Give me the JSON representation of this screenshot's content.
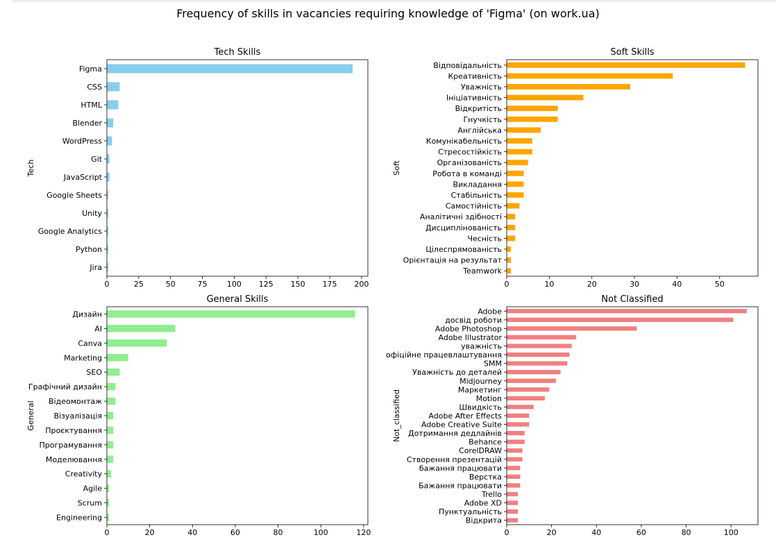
{
  "figure": {
    "title": "Frequency of skills in vacancies requiring knowledge of 'Figma' (on work.ua)"
  },
  "chart_data": [
    {
      "type": "bar",
      "orientation": "horizontal",
      "title": "Tech Skills",
      "xlabel": "",
      "ylabel": "Tech",
      "color": "#87ceeb",
      "xlim": [
        0,
        205
      ],
      "xticks": [
        0,
        25,
        50,
        75,
        100,
        125,
        150,
        175,
        200
      ],
      "categories": [
        "Figma",
        "CSS",
        "HTML",
        "Blender",
        "WordPress",
        "Git",
        "JavaScript",
        "Google Sheets",
        "Unity",
        "Google Analytics",
        "Python",
        "Jira"
      ],
      "values": [
        193,
        10,
        9,
        5,
        4,
        2,
        2,
        1,
        1,
        1,
        1,
        1
      ]
    },
    {
      "type": "bar",
      "orientation": "horizontal",
      "title": "Soft Skills",
      "xlabel": "",
      "ylabel": "Soft",
      "color": "#ffa500",
      "xlim": [
        0,
        59
      ],
      "xticks": [
        0,
        10,
        20,
        30,
        40,
        50
      ],
      "categories": [
        "Відповідальність",
        "Креативність",
        "Уважність",
        "Ініціативність",
        "Відкритість",
        "Гнучкість",
        "Англійська",
        "Комунікабельність",
        "Стресостійкість",
        "Організованість",
        "Робота в команді",
        "Викладання",
        "Стабільність",
        "Самостійність",
        "Аналітичні здібності",
        "Дисциплінованість",
        "Чесність",
        "Цілеспрямованість",
        "Орієнтація на результат",
        "Teamwork"
      ],
      "values": [
        56,
        39,
        29,
        18,
        12,
        12,
        8,
        6,
        6,
        5,
        4,
        4,
        4,
        3,
        2,
        2,
        2,
        1,
        1,
        1
      ]
    },
    {
      "type": "bar",
      "orientation": "horizontal",
      "title": "General Skills",
      "xlabel": "",
      "ylabel": "General",
      "color": "#90ee90",
      "xlim": [
        0,
        122
      ],
      "xticks": [
        0,
        20,
        40,
        60,
        80,
        100,
        120
      ],
      "categories": [
        "Дизайн",
        "AI",
        "Canva",
        "Marketing",
        "SEO",
        "Графічний дизайн",
        "Відеомонтаж",
        "Візуалізація",
        "Проєктування",
        "Програмування",
        "Моделювання",
        "Creativity",
        "Agile",
        "Scrum",
        "Engineering"
      ],
      "values": [
        116,
        32,
        28,
        10,
        6,
        4,
        4,
        3,
        3,
        3,
        3,
        2,
        1,
        1,
        1
      ]
    },
    {
      "type": "bar",
      "orientation": "horizontal",
      "title": "Not Classified",
      "xlabel": "",
      "ylabel": "Not_classified",
      "color": "#f08080",
      "xlim": [
        0,
        112
      ],
      "xticks": [
        0,
        20,
        40,
        60,
        80,
        100
      ],
      "categories": [
        "Adobe",
        "досвід роботи",
        "Adobe Photoshop",
        "Adobe Illustrator",
        "уважність",
        "офіційне працевлаштування",
        "SMM",
        "Уважність до деталей",
        "Midjourney",
        "Маркетинг",
        "Motion",
        "Швидкість",
        "Adobe After Effects",
        "Adobe Creative Suite",
        "Дотримання дедлайнів",
        "Behance",
        "CorelDRAW",
        "Створення презентацій",
        "бажання працювати",
        "Верстка",
        "Бажання працювати",
        "Trello",
        "Adobe XD",
        "Пунктуальність",
        "Відкрита"
      ],
      "values": [
        107,
        101,
        58,
        31,
        29,
        28,
        27,
        24,
        22,
        19,
        17,
        12,
        10,
        10,
        8,
        8,
        7,
        7,
        6,
        6,
        6,
        5,
        5,
        5,
        5
      ]
    }
  ]
}
